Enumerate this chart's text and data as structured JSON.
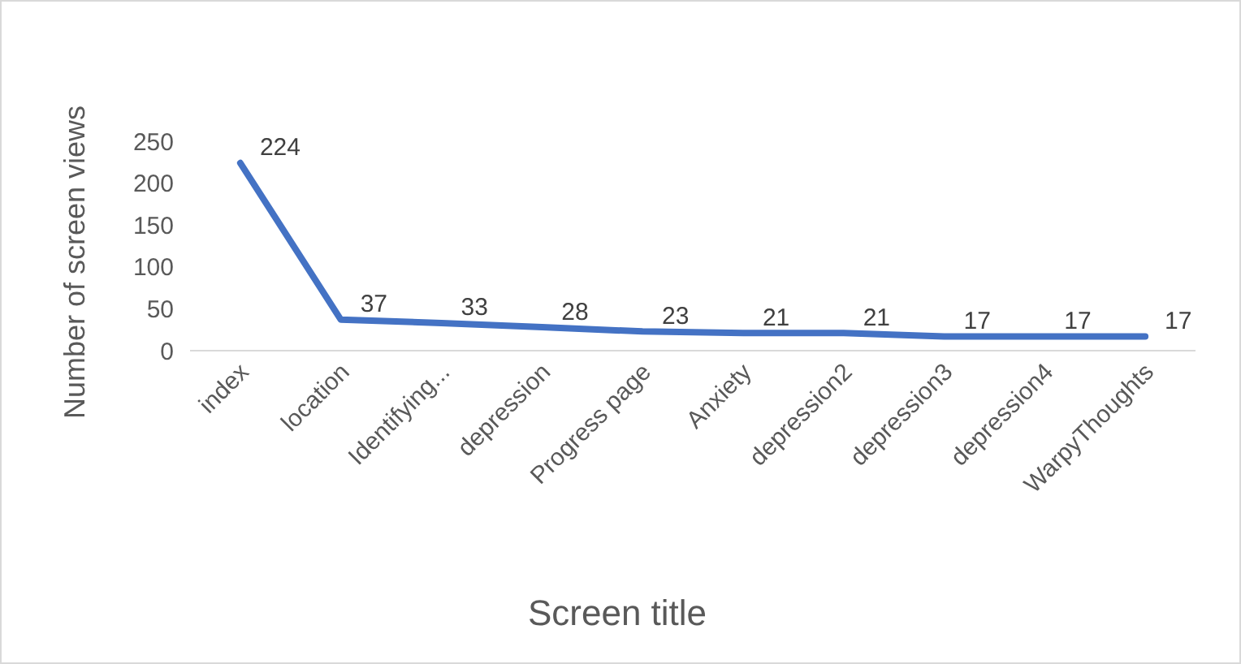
{
  "chart_data": {
    "type": "line",
    "xlabel": "Screen title",
    "ylabel": "Number of screen views",
    "categories": [
      "index",
      "location",
      "Identifying...",
      "depression",
      "Progress page",
      "Anxiety",
      "depression2",
      "depression3",
      "depression4",
      "WarpyThoughts"
    ],
    "series": [
      {
        "color": "#4472c4",
        "values": [
          224,
          37,
          33,
          28,
          23,
          21,
          21,
          17,
          17,
          17
        ]
      }
    ],
    "ylim": [
      0,
      250
    ],
    "yticks": [
      0,
      50,
      100,
      150,
      200,
      250
    ],
    "grid": false,
    "data_labels": true,
    "marker": "none",
    "line_style": "solid"
  }
}
